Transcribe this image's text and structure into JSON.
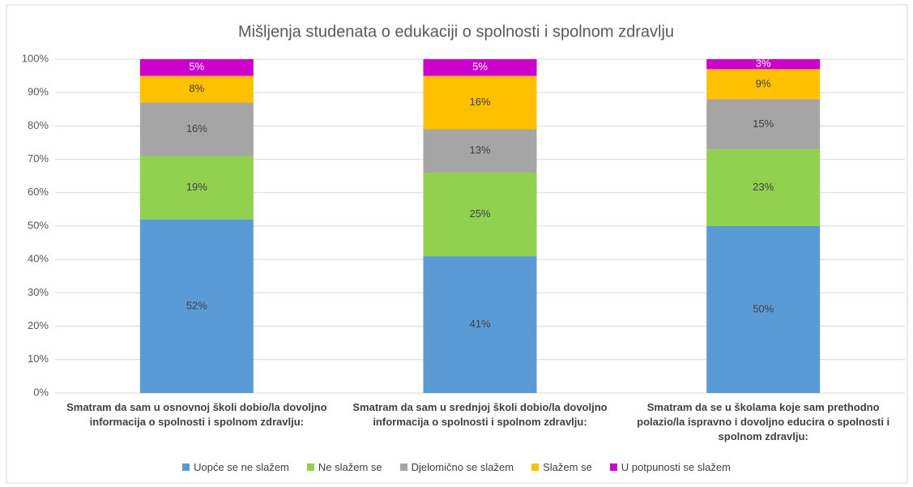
{
  "chart_data": {
    "type": "stacked_bar",
    "title": "Mišljenja studenata o edukaciji o spolnosti i spolnom zdravlju",
    "categories": [
      "Smatram da sam u osnovnoj školi dobio/la dovoljno informacija o spolnosti i spolnom zdravlju:",
      "Smatram da sam u srednjoj školi dobio/la dovoljno informacija o spolnosti i spolnom zdravlju:",
      "Smatram da se u školama koje sam prethodno polazio/la ispravno i dovoljno educira o spolnosti i spolnom zdravlju:"
    ],
    "series": [
      {
        "name": "Uopće se ne slažem",
        "color": "#5b9bd5",
        "values": [
          52,
          41,
          50
        ],
        "value_labels": [
          "52%",
          "41%",
          "50%"
        ]
      },
      {
        "name": "Ne slažem se",
        "color": "#92d050",
        "values": [
          19,
          25,
          23
        ],
        "value_labels": [
          "19%",
          "25%",
          "23%"
        ]
      },
      {
        "name": "Djelomično se slažem",
        "color": "#a5a5a5",
        "values": [
          16,
          13,
          15
        ],
        "value_labels": [
          "16%",
          "13%",
          "15%"
        ]
      },
      {
        "name": "Slažem se",
        "color": "#ffc000",
        "values": [
          8,
          16,
          9
        ],
        "value_labels": [
          "8%",
          "16%",
          "9%"
        ]
      },
      {
        "name": "U potpunosti se slažem",
        "color": "#cc00cc",
        "values": [
          5,
          5,
          3
        ],
        "value_labels": [
          "5%",
          "5%",
          "3%"
        ]
      }
    ],
    "ylim": [
      0,
      100
    ],
    "yticks": [
      {
        "value": 0,
        "label": "0%"
      },
      {
        "value": 10,
        "label": "10%"
      },
      {
        "value": 20,
        "label": "20%"
      },
      {
        "value": 30,
        "label": "30%"
      },
      {
        "value": 40,
        "label": "40%"
      },
      {
        "value": 50,
        "label": "50%"
      },
      {
        "value": 60,
        "label": "60%"
      },
      {
        "value": 70,
        "label": "70%"
      },
      {
        "value": 80,
        "label": "80%"
      },
      {
        "value": 90,
        "label": "90%"
      },
      {
        "value": 100,
        "label": "100%"
      }
    ],
    "grid": true,
    "legend": "bottom"
  }
}
